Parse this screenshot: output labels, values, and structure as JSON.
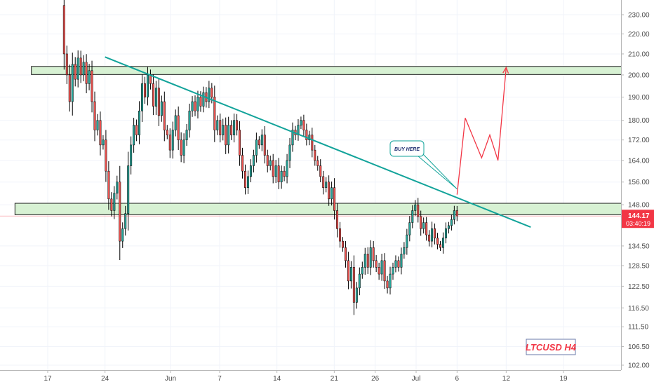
{
  "chart_data": {
    "type": "candlestick",
    "symbol_label": "LTCUSD H4",
    "price_scale": {
      "ticks": [
        230.0,
        220.0,
        210.0,
        200.0,
        190.0,
        180.0,
        172.0,
        164.0,
        156.0,
        148.0,
        134.5,
        128.5,
        122.5,
        116.5,
        111.5,
        106.5,
        102.0
      ],
      "tick_labels": [
        "230.00",
        "220.00",
        "210.00",
        "200.00",
        "190.00",
        "180.00",
        "172.00",
        "164.00",
        "156.00",
        "148.00",
        "134.50",
        "128.50",
        "122.50",
        "116.50",
        "111.50",
        "106.50",
        "102.00"
      ],
      "scale": "log"
    },
    "time_axis": {
      "labels": [
        "17",
        "24",
        "Jun",
        "7",
        "14",
        "21",
        "26",
        "Jul",
        "6",
        "12",
        "19"
      ],
      "label_dates": [
        "2021-05-17",
        "2021-05-24",
        "2021-06-01",
        "2021-06-07",
        "2021-06-14",
        "2021-06-21",
        "2021-06-26",
        "2021-07-01",
        "2021-07-06",
        "2021-07-12",
        "2021-07-19"
      ]
    },
    "last_price": {
      "value": 144.17,
      "label": "144.17",
      "countdown": "03:40:19"
    },
    "zones": [
      {
        "name": "resistance-zone",
        "price_low": 200.2,
        "price_high": 204.0,
        "start": "2021-05-15",
        "end": "2021-07-27"
      },
      {
        "name": "support-zone",
        "price_low": 144.6,
        "price_high": 148.5,
        "start": "2021-05-13",
        "end": "2021-07-27"
      }
    ],
    "trendline": {
      "start": {
        "date": "2021-05-24",
        "price": 208.5
      },
      "end": {
        "date": "2021-07-15",
        "price": 140.5
      }
    },
    "callout": {
      "text": "BUY HERE",
      "pointer": {
        "date": "2021-07-06",
        "price": 153.5
      }
    },
    "projection": [
      {
        "date": "2021-07-06",
        "price": 151.5
      },
      {
        "date": "2021-07-07",
        "price": 181.0
      },
      {
        "date": "2021-07-09",
        "price": 165.0
      },
      {
        "date": "2021-07-10",
        "price": 174.0
      },
      {
        "date": "2021-07-11",
        "price": 164.0
      },
      {
        "date": "2021-07-12",
        "price": 203.5
      }
    ],
    "candles_anchor": {
      "date": "2021-05-19",
      "open": 235.0
    },
    "candles_close": [
      210.0,
      200.0,
      188.0,
      205.0,
      198.0,
      208.0,
      200.0,
      206.0,
      196.0,
      202.0,
      188.0,
      176.0,
      180.0,
      170.0,
      172.0,
      160.0,
      150.0,
      146.0,
      152.0,
      156.0,
      136.0,
      140.0,
      145.0,
      162.0,
      170.0,
      178.0,
      174.0,
      184.0,
      196.0,
      190.0,
      200.0,
      196.0,
      186.0,
      194.0,
      182.0,
      188.0,
      176.0,
      174.0,
      168.0,
      176.0,
      182.0,
      172.0,
      166.0,
      172.0,
      176.0,
      184.0,
      188.0,
      184.0,
      190.0,
      186.0,
      192.0,
      188.0,
      194.0,
      190.0,
      176.0,
      180.0,
      174.0,
      178.0,
      170.0,
      178.0,
      174.0,
      180.0,
      176.0,
      166.0,
      160.0,
      154.0,
      158.0,
      162.0,
      166.0,
      172.0,
      170.0,
      174.0,
      166.0,
      162.0,
      164.0,
      158.0,
      162.0,
      156.0,
      160.0,
      158.0,
      164.0,
      170.0,
      176.0,
      174.0,
      178.0,
      180.0,
      176.0,
      172.0,
      174.0,
      168.0,
      164.0,
      162.0,
      158.0,
      154.0,
      156.0,
      150.0,
      154.0,
      146.0,
      140.0,
      136.0,
      134.0,
      130.0,
      124.0,
      128.0,
      118.0,
      122.0,
      126.0,
      128.0,
      132.0,
      128.0,
      134.0,
      130.0,
      128.0,
      126.0,
      130.0,
      124.0,
      122.0,
      126.0,
      128.0,
      130.0,
      128.0,
      132.0,
      134.0,
      138.0,
      142.0,
      146.0,
      148.0,
      144.0,
      140.0,
      142.0,
      138.0,
      136.0,
      140.0,
      137.0,
      135.0,
      134.0,
      137.0,
      140.0,
      141.0,
      143.0,
      146.0,
      144.17
    ],
    "candles_end": "2021-07-06",
    "colors": {
      "up": "#26a69a",
      "down": "#ef5350",
      "trendline": "#12a39a",
      "projection": "#f23645",
      "zone_fill": "#d7f1d3",
      "zone_border": "#1e1e1e",
      "price_label_bg": "#f23645",
      "symbol_label": "#f23645"
    }
  }
}
